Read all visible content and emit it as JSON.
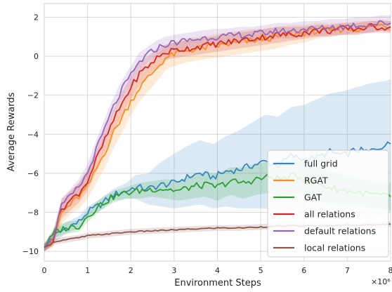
{
  "chart_data": {
    "type": "line",
    "title": "",
    "xlabel": "Environment Steps",
    "ylabel": "Average Rewards",
    "x_scale_label": "×10⁶",
    "xlim": [
      0,
      8
    ],
    "ylim": [
      -10.5,
      2.7
    ],
    "xticks": [
      0,
      1,
      2,
      3,
      4,
      5,
      6,
      7,
      8
    ],
    "xtick_labels": [
      "0",
      "1",
      "2",
      "3",
      "4",
      "5",
      "6",
      "7",
      "8"
    ],
    "yticks": [
      -10,
      -8,
      -6,
      -4,
      -2,
      0,
      2
    ],
    "ytick_labels": [
      "−10",
      "−8",
      "−6",
      "−4",
      "−2",
      "0",
      "2"
    ],
    "grid": true,
    "legend_position": "lower-right",
    "series": [
      {
        "name": "full grid",
        "color": "#3a87c0",
        "x": [
          0,
          0.25,
          0.5,
          0.8,
          1.0,
          1.3,
          1.6,
          1.9,
          2.1,
          2.4,
          2.7,
          3.0,
          3.3,
          3.6,
          3.9,
          4.2,
          4.5,
          4.8,
          5.1,
          5.4,
          5.7,
          6.0,
          6.3,
          6.6,
          6.9,
          7.2,
          7.5,
          7.8,
          8.0
        ],
        "values": [
          -9.8,
          -9.2,
          -8.8,
          -8.5,
          -8.0,
          -7.6,
          -7.1,
          -6.9,
          -6.7,
          -6.8,
          -6.6,
          -6.5,
          -6.2,
          -6.0,
          -6.2,
          -5.9,
          -5.8,
          -5.6,
          -5.4,
          -5.6,
          -5.1,
          -5.3,
          -5.2,
          -4.9,
          -5.1,
          -4.8,
          -4.9,
          -4.6,
          -4.5
        ],
        "band": [
          [
            -10.0,
            -9.6
          ],
          [
            -9.5,
            -8.9
          ],
          [
            -9.1,
            -8.5
          ],
          [
            -8.8,
            -8.2
          ],
          [
            -8.3,
            -7.7
          ],
          [
            -7.9,
            -7.3
          ],
          [
            -7.4,
            -6.8
          ],
          [
            -7.3,
            -6.5
          ],
          [
            -7.3,
            -6.1
          ],
          [
            -7.6,
            -6.0
          ],
          [
            -7.7,
            -5.4
          ],
          [
            -7.8,
            -5.0
          ],
          [
            -7.7,
            -4.6
          ],
          [
            -7.6,
            -4.3
          ],
          [
            -7.8,
            -4.5
          ],
          [
            -7.7,
            -4.1
          ],
          [
            -7.8,
            -3.8
          ],
          [
            -7.8,
            -3.4
          ],
          [
            -7.8,
            -3.0
          ],
          [
            -8.1,
            -3.1
          ],
          [
            -7.9,
            -2.6
          ],
          [
            -8.2,
            -2.5
          ],
          [
            -8.3,
            -2.2
          ],
          [
            -8.1,
            -1.9
          ],
          [
            -8.4,
            -1.8
          ],
          [
            -8.2,
            -1.6
          ],
          [
            -8.4,
            -1.4
          ],
          [
            -8.1,
            -1.3
          ],
          [
            -8.0,
            -1.2
          ]
        ]
      },
      {
        "name": "RGAT",
        "color": "#ff8c1a",
        "x": [
          0,
          0.2,
          0.4,
          0.6,
          0.8,
          1.0,
          1.2,
          1.4,
          1.6,
          1.8,
          2.0,
          2.2,
          2.4,
          2.6,
          2.8,
          3.0,
          3.3,
          3.6,
          3.9,
          4.2,
          4.5,
          4.8,
          5.1,
          5.4,
          5.7,
          6.0,
          6.3,
          6.6,
          6.9,
          7.2,
          7.5,
          7.8,
          8.0
        ],
        "values": [
          -9.8,
          -9.5,
          -8.0,
          -7.6,
          -7.2,
          -6.7,
          -5.8,
          -4.9,
          -3.9,
          -3.1,
          -2.3,
          -1.6,
          -1.1,
          -0.6,
          -0.1,
          0.1,
          0.3,
          0.4,
          0.5,
          0.6,
          0.7,
          0.8,
          0.9,
          1.0,
          1.1,
          1.2,
          1.3,
          1.3,
          1.4,
          1.4,
          1.5,
          1.6,
          1.5
        ],
        "band": [
          [
            -10.0,
            -9.6
          ],
          [
            -9.8,
            -9.1
          ],
          [
            -8.6,
            -7.5
          ],
          [
            -8.1,
            -7.0
          ],
          [
            -7.8,
            -6.5
          ],
          [
            -7.3,
            -5.9
          ],
          [
            -6.5,
            -5.0
          ],
          [
            -5.7,
            -4.1
          ],
          [
            -4.7,
            -3.1
          ],
          [
            -3.9,
            -2.3
          ],
          [
            -3.0,
            -1.5
          ],
          [
            -2.3,
            -0.9
          ],
          [
            -1.8,
            -0.4
          ],
          [
            -1.3,
            0.1
          ],
          [
            -0.7,
            0.5
          ],
          [
            -0.5,
            0.7
          ],
          [
            -0.3,
            0.9
          ],
          [
            -0.2,
            1.0
          ],
          [
            -0.1,
            1.1
          ],
          [
            0.0,
            1.2
          ],
          [
            0.1,
            1.3
          ],
          [
            0.2,
            1.4
          ],
          [
            0.3,
            1.4
          ],
          [
            0.4,
            1.5
          ],
          [
            0.6,
            1.6
          ],
          [
            0.7,
            1.6
          ],
          [
            0.9,
            1.7
          ],
          [
            1.0,
            1.7
          ],
          [
            1.1,
            1.7
          ],
          [
            1.1,
            1.8
          ],
          [
            1.2,
            1.8
          ],
          [
            1.3,
            1.9
          ],
          [
            1.2,
            1.8
          ]
        ]
      },
      {
        "name": "GAT",
        "color": "#2ca02c",
        "x": [
          0,
          0.25,
          0.5,
          0.8,
          1.0,
          1.3,
          1.6,
          1.9,
          2.2,
          2.5,
          2.8,
          3.1,
          3.4,
          3.7,
          4.0,
          4.3,
          4.6,
          4.9,
          5.2,
          5.5,
          5.8,
          6.1,
          6.4,
          6.7,
          7.0,
          7.3,
          7.6,
          8.0
        ],
        "values": [
          -9.8,
          -9.0,
          -8.8,
          -8.7,
          -8.2,
          -7.6,
          -7.2,
          -7.0,
          -6.9,
          -6.8,
          -6.8,
          -6.9,
          -6.7,
          -6.6,
          -6.7,
          -6.4,
          -6.5,
          -6.3,
          -6.2,
          -6.3,
          -6.1,
          -6.4,
          -6.6,
          -6.8,
          -6.9,
          -7.0,
          -7.1,
          -7.2
        ],
        "band": [
          [
            -10.0,
            -9.6
          ],
          [
            -9.3,
            -8.7
          ],
          [
            -9.1,
            -8.5
          ],
          [
            -9.0,
            -8.4
          ],
          [
            -8.5,
            -7.9
          ],
          [
            -7.9,
            -7.3
          ],
          [
            -7.5,
            -6.9
          ],
          [
            -7.3,
            -6.7
          ],
          [
            -7.3,
            -6.5
          ],
          [
            -7.2,
            -6.4
          ],
          [
            -7.3,
            -6.3
          ],
          [
            -7.4,
            -6.4
          ],
          [
            -7.3,
            -6.1
          ],
          [
            -7.2,
            -6.0
          ],
          [
            -7.4,
            -6.0
          ],
          [
            -7.1,
            -5.7
          ],
          [
            -7.3,
            -5.7
          ],
          [
            -7.1,
            -5.5
          ],
          [
            -7.0,
            -5.4
          ],
          [
            -7.2,
            -5.4
          ],
          [
            -7.0,
            -5.2
          ],
          [
            -7.3,
            -5.5
          ],
          [
            -7.5,
            -5.7
          ],
          [
            -7.6,
            -6.0
          ],
          [
            -7.7,
            -6.1
          ],
          [
            -7.7,
            -6.3
          ],
          [
            -7.8,
            -6.4
          ],
          [
            -7.9,
            -6.5
          ]
        ]
      },
      {
        "name": "all relations",
        "color": "#d62728",
        "x": [
          0,
          0.2,
          0.4,
          0.6,
          0.8,
          1.0,
          1.2,
          1.4,
          1.6,
          1.8,
          2.0,
          2.2,
          2.4,
          2.6,
          2.8,
          3.0,
          3.3,
          3.6,
          3.9,
          4.2,
          4.5,
          4.8,
          5.1,
          5.4,
          5.7,
          6.0,
          6.3,
          6.6,
          6.9,
          7.2,
          7.5,
          7.8,
          8.0
        ],
        "values": [
          -9.8,
          -9.4,
          -7.8,
          -7.4,
          -7.0,
          -6.4,
          -5.3,
          -4.3,
          -3.3,
          -2.4,
          -1.6,
          -0.9,
          -0.5,
          -0.1,
          0.2,
          0.3,
          0.4,
          0.5,
          0.6,
          0.7,
          0.8,
          0.9,
          1.0,
          1.1,
          1.1,
          1.2,
          1.3,
          1.3,
          1.4,
          1.4,
          1.5,
          1.5,
          1.5
        ],
        "band": [
          [
            -10.0,
            -9.6
          ],
          [
            -9.7,
            -9.1
          ],
          [
            -8.3,
            -7.3
          ],
          [
            -7.9,
            -6.9
          ],
          [
            -7.5,
            -6.5
          ],
          [
            -6.9,
            -5.8
          ],
          [
            -5.9,
            -4.7
          ],
          [
            -4.9,
            -3.7
          ],
          [
            -3.9,
            -2.7
          ],
          [
            -3.0,
            -1.8
          ],
          [
            -2.2,
            -1.0
          ],
          [
            -1.5,
            -0.3
          ],
          [
            -1.0,
            0.0
          ],
          [
            -0.6,
            0.4
          ],
          [
            -0.2,
            0.6
          ],
          [
            -0.1,
            0.7
          ],
          [
            0.0,
            0.8
          ],
          [
            0.1,
            0.9
          ],
          [
            0.2,
            1.0
          ],
          [
            0.3,
            1.1
          ],
          [
            0.4,
            1.2
          ],
          [
            0.5,
            1.3
          ],
          [
            0.6,
            1.4
          ],
          [
            0.7,
            1.5
          ],
          [
            0.8,
            1.5
          ],
          [
            0.9,
            1.5
          ],
          [
            1.0,
            1.6
          ],
          [
            1.0,
            1.6
          ],
          [
            1.1,
            1.7
          ],
          [
            1.1,
            1.7
          ],
          [
            1.2,
            1.8
          ],
          [
            1.2,
            1.8
          ],
          [
            1.2,
            1.8
          ]
        ]
      },
      {
        "name": "default relations",
        "color": "#9467bd",
        "x": [
          0,
          0.2,
          0.4,
          0.6,
          0.8,
          1.0,
          1.2,
          1.4,
          1.6,
          1.8,
          2.0,
          2.2,
          2.4,
          2.6,
          2.8,
          3.0,
          3.3,
          3.6,
          3.9,
          4.2,
          4.5,
          4.8,
          5.1,
          5.4,
          5.7,
          6.0,
          6.3,
          6.6,
          6.9,
          7.2,
          7.5,
          7.8,
          8.0
        ],
        "values": [
          -9.8,
          -9.3,
          -7.7,
          -7.2,
          -6.7,
          -6.0,
          -4.8,
          -3.7,
          -2.6,
          -1.7,
          -1.0,
          -0.3,
          0.1,
          0.4,
          0.6,
          0.7,
          0.8,
          0.9,
          1.0,
          1.0,
          1.1,
          1.1,
          1.2,
          1.3,
          1.3,
          1.4,
          1.4,
          1.5,
          1.5,
          1.6,
          1.6,
          1.7,
          1.7
        ],
        "band": [
          [
            -10.0,
            -9.6
          ],
          [
            -9.6,
            -9.0
          ],
          [
            -8.1,
            -7.3
          ],
          [
            -7.6,
            -6.8
          ],
          [
            -7.1,
            -6.3
          ],
          [
            -6.5,
            -5.5
          ],
          [
            -5.3,
            -4.3
          ],
          [
            -4.2,
            -3.2
          ],
          [
            -3.1,
            -2.1
          ],
          [
            -2.2,
            -1.2
          ],
          [
            -1.5,
            -0.5
          ],
          [
            -0.8,
            0.2
          ],
          [
            -0.3,
            0.5
          ],
          [
            0.0,
            0.8
          ],
          [
            0.2,
            1.0
          ],
          [
            0.3,
            1.1
          ],
          [
            0.4,
            1.2
          ],
          [
            0.5,
            1.3
          ],
          [
            0.6,
            1.4
          ],
          [
            0.6,
            1.4
          ],
          [
            0.7,
            1.5
          ],
          [
            0.7,
            1.5
          ],
          [
            0.8,
            1.6
          ],
          [
            0.9,
            1.7
          ],
          [
            0.9,
            1.7
          ],
          [
            1.0,
            1.8
          ],
          [
            1.0,
            1.8
          ],
          [
            1.1,
            1.9
          ],
          [
            1.1,
            1.9
          ],
          [
            1.2,
            2.0
          ],
          [
            1.2,
            2.0
          ],
          [
            1.3,
            2.1
          ],
          [
            1.3,
            2.1
          ]
        ]
      },
      {
        "name": "local relations",
        "color": "#8c564b",
        "x": [
          0,
          0.25,
          0.5,
          0.8,
          1.0,
          1.5,
          2.0,
          2.5,
          3.0,
          3.5,
          4.0,
          4.5,
          5.0,
          5.5,
          6.0,
          6.5,
          7.0,
          7.5,
          8.0
        ],
        "values": [
          -9.8,
          -9.5,
          -9.4,
          -9.3,
          -9.2,
          -9.1,
          -9.0,
          -8.95,
          -8.9,
          -8.85,
          -8.8,
          -8.8,
          -8.75,
          -8.7,
          -8.7,
          -8.7,
          -8.65,
          -8.65,
          -8.6
        ],
        "band": [
          [
            -10.0,
            -9.6
          ],
          [
            -9.65,
            -9.35
          ],
          [
            -9.55,
            -9.25
          ],
          [
            -9.45,
            -9.15
          ],
          [
            -9.35,
            -9.05
          ],
          [
            -9.25,
            -8.95
          ],
          [
            -9.15,
            -8.85
          ],
          [
            -9.1,
            -8.8
          ],
          [
            -9.05,
            -8.75
          ],
          [
            -9.0,
            -8.7
          ],
          [
            -8.95,
            -8.65
          ],
          [
            -8.95,
            -8.65
          ],
          [
            -8.9,
            -8.6
          ],
          [
            -8.85,
            -8.55
          ],
          [
            -8.85,
            -8.55
          ],
          [
            -8.85,
            -8.55
          ],
          [
            -8.8,
            -8.5
          ],
          [
            -8.8,
            -8.5
          ],
          [
            -8.75,
            -8.45
          ]
        ]
      }
    ]
  }
}
